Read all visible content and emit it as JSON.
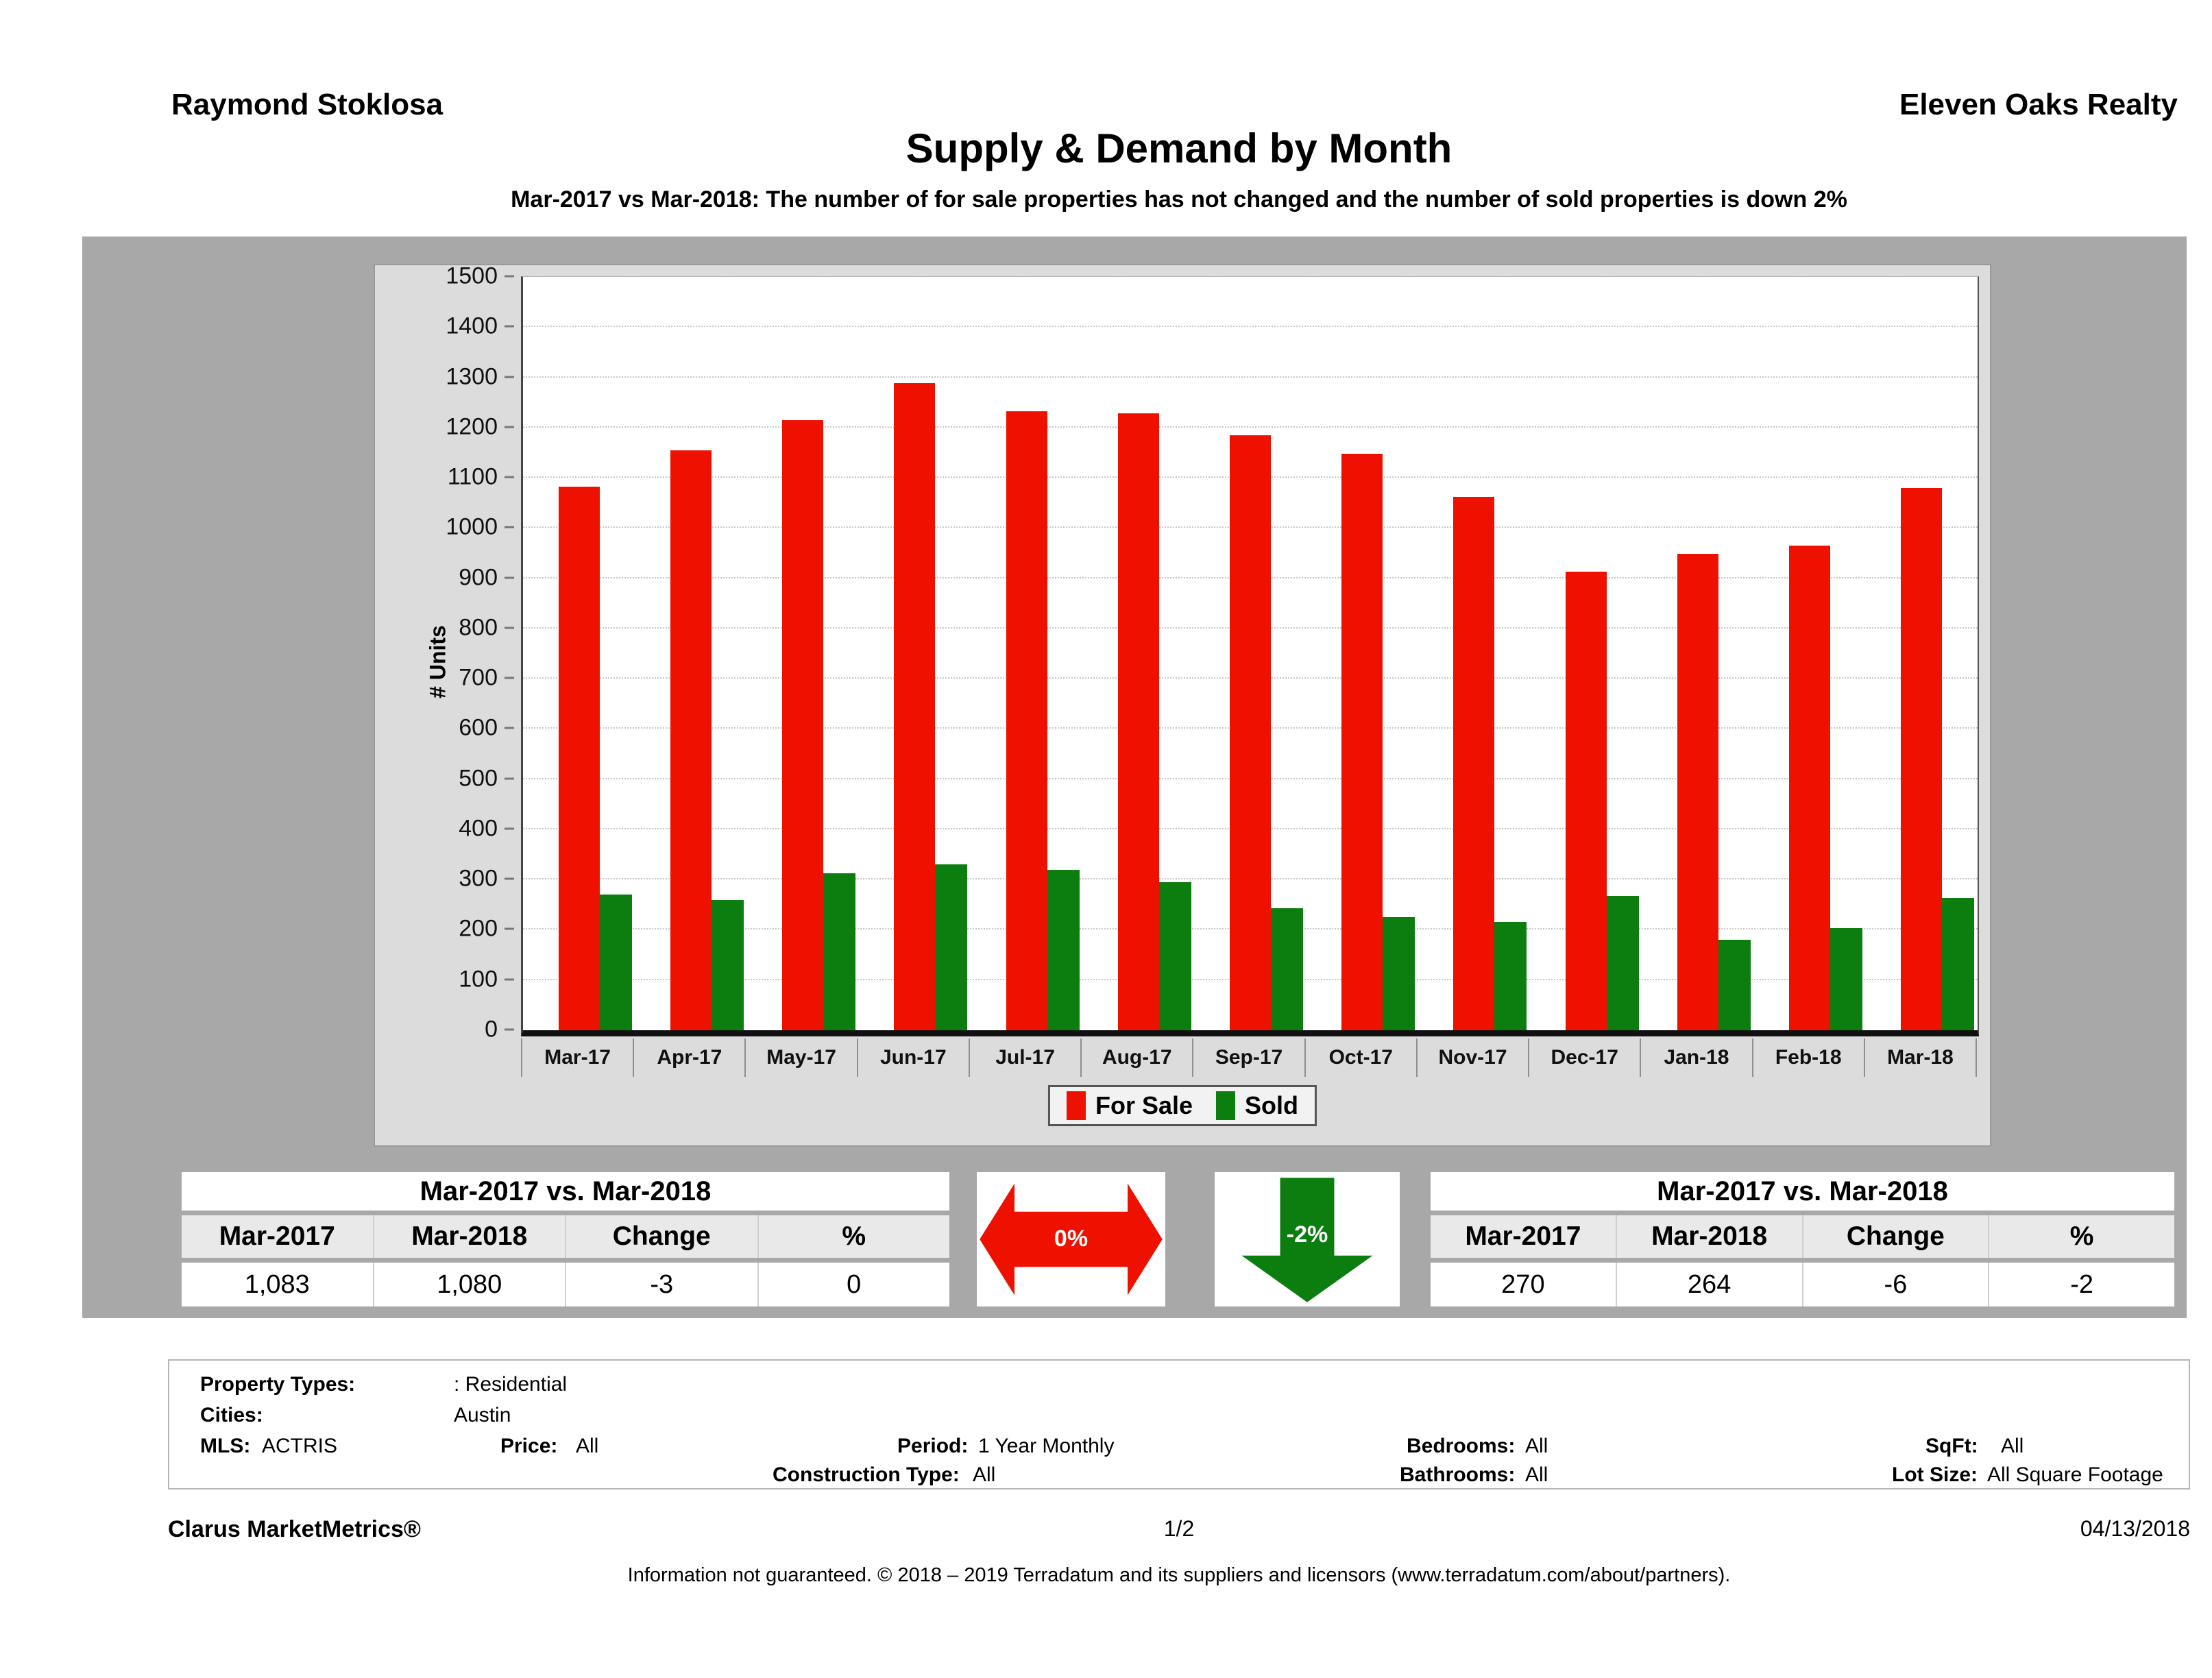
{
  "header": {
    "agent": "Raymond Stoklosa",
    "company": "Eleven Oaks Realty",
    "title": "Supply & Demand by Month",
    "subtitle": "Mar-2017 vs Mar-2018: The number of for sale properties has not changed and the number of sold properties is down 2%"
  },
  "chart_data": {
    "type": "bar",
    "title": "Supply & Demand by Month",
    "xlabel": "",
    "ylabel": "# Units",
    "ylim": [
      0,
      1500
    ],
    "ytick_interval": 100,
    "grid": true,
    "legend_position": "bottom-center",
    "categories": [
      "Mar-17",
      "Apr-17",
      "May-17",
      "Jun-17",
      "Jul-17",
      "Aug-17",
      "Sep-17",
      "Oct-17",
      "Nov-17",
      "Dec-17",
      "Jan-18",
      "Feb-18",
      "Mar-18"
    ],
    "series": [
      {
        "name": "For Sale",
        "color": "#ee1100",
        "values": [
          1083,
          1155,
          1215,
          1288,
          1233,
          1228,
          1185,
          1148,
          1062,
          913,
          948,
          965,
          1080
        ]
      },
      {
        "name": "Sold",
        "color": "#0c7e10",
        "values": [
          270,
          260,
          313,
          330,
          320,
          295,
          243,
          225,
          215,
          267,
          180,
          203,
          264
        ]
      }
    ]
  },
  "comparison_left": {
    "title": "Mar-2017 vs. Mar-2018",
    "headers": [
      "Mar-2017",
      "Mar-2018",
      "Change",
      "%"
    ],
    "values": [
      "1,083",
      "1,080",
      "-3",
      "0"
    ]
  },
  "comparison_right": {
    "title": "Mar-2017 vs. Mar-2018",
    "headers": [
      "Mar-2017",
      "Mar-2018",
      "Change",
      "%"
    ],
    "values": [
      "270",
      "264",
      "-6",
      "-2"
    ]
  },
  "arrows": {
    "for_sale": {
      "label": "0%",
      "direction": "horizontal-both",
      "color": "#ee1100"
    },
    "sold": {
      "label": "-2%",
      "direction": "down",
      "color": "#0c7e10"
    }
  },
  "filters": {
    "property_types_label": "Property Types:",
    "property_types_value": ": Residential",
    "cities_label": "Cities:",
    "cities_value": "Austin",
    "mls_label": "MLS:",
    "mls_value": "ACTRIS",
    "price_label": "Price:",
    "price_value": "All",
    "period_label": "Period:",
    "period_value": "1 Year Monthly",
    "construction_label": "Construction Type:",
    "construction_value": "All",
    "bedrooms_label": "Bedrooms:",
    "bedrooms_value": "All",
    "bathrooms_label": "Bathrooms:",
    "bathrooms_value": "All",
    "sqft_label": "SqFt:",
    "sqft_value": "All",
    "lotsize_label": "Lot Size:",
    "lotsize_value": "All Square Footage"
  },
  "footer": {
    "brand": "Clarus MarketMetrics®",
    "page": "1/2",
    "date": "04/13/2018",
    "disclaimer": "Information not guaranteed. © 2018 – 2019 Terradatum and its suppliers and licensors (www.terradatum.com/about/partners)."
  }
}
